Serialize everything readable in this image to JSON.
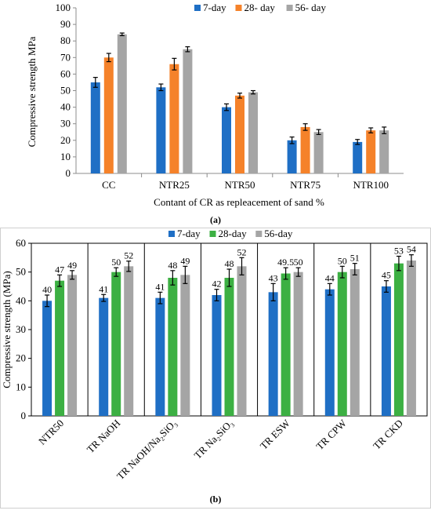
{
  "chart_data": [
    {
      "type": "bar",
      "categories": [
        "CC",
        "NTR25",
        "NTR50",
        "NTR75",
        "NTR100"
      ],
      "series": [
        {
          "name": "7-day",
          "color": "#1f6fc5",
          "values": [
            55,
            52,
            40,
            20,
            19
          ],
          "errors": [
            3,
            2,
            2,
            2,
            1.5
          ]
        },
        {
          "name": "28- day",
          "color": "#f5822a",
          "values": [
            70,
            66,
            47,
            28,
            26
          ],
          "errors": [
            2.5,
            3.5,
            1.5,
            2,
            1.5
          ]
        },
        {
          "name": "56- day",
          "color": "#a5a5a5",
          "values": [
            84,
            75,
            49,
            25,
            26
          ],
          "errors": [
            0.8,
            1.5,
            1,
            1.5,
            2
          ]
        }
      ],
      "ylabel": "Compressive strength MPa",
      "xlabel": "Contant of CR as repleacement of sand %",
      "ylim": [
        0,
        100
      ],
      "yticks": [
        0,
        10,
        20,
        30,
        40,
        50,
        60,
        70,
        80,
        90,
        100
      ],
      "caption": "(a)",
      "legend_position": "top-right",
      "grid": false
    },
    {
      "type": "bar",
      "categories": [
        "NTR50",
        "TR NaOH",
        "TR NaOH/Na₂SiO₃",
        "TR Na₂SiO₃",
        "TR ESW",
        "TR CPW",
        "TR CKD"
      ],
      "series": [
        {
          "name": "7-day",
          "color": "#1f6fc5",
          "values": [
            40,
            41,
            41,
            42,
            43,
            44,
            45
          ],
          "labels": [
            "40",
            "41",
            "41",
            "42",
            "43",
            "44",
            "45"
          ],
          "errors": [
            2,
            1.2,
            2,
            2,
            3,
            2,
            2
          ]
        },
        {
          "name": "28-day",
          "color": "#3cb043",
          "values": [
            47,
            50,
            48,
            48,
            49.5,
            50,
            53
          ],
          "labels": [
            "47",
            "50",
            "48",
            "48",
            "49.5",
            "50",
            "53"
          ],
          "errors": [
            2,
            1.5,
            2.5,
            3,
            2,
            2,
            2.5
          ]
        },
        {
          "name": "56-day",
          "color": "#a5a5a5",
          "values": [
            49,
            52,
            49,
            52,
            50,
            51,
            54
          ],
          "labels": [
            "49",
            "52",
            "49",
            "52",
            "50",
            "51",
            "54"
          ],
          "errors": [
            1.5,
            1.8,
            3,
            3,
            1.5,
            2,
            2
          ]
        }
      ],
      "ylabel": "Compressive strength (MPa)",
      "xlabel": "",
      "ylim": [
        0,
        60
      ],
      "yticks": [
        0,
        10,
        20,
        30,
        40,
        50,
        60
      ],
      "caption": "(b)",
      "legend_position": "top",
      "grid": false
    }
  ]
}
